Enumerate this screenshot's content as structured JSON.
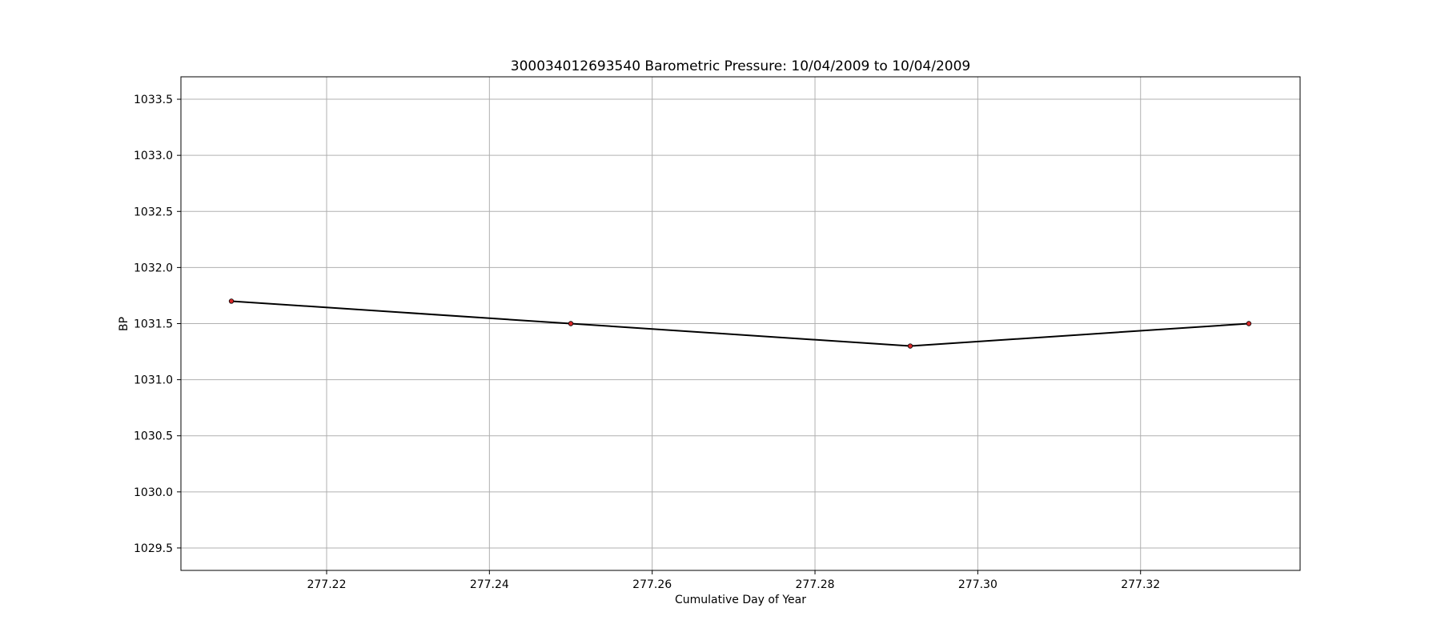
{
  "chart_data": {
    "type": "line",
    "title": "300034012693540 Barometric Pressure: 10/04/2009 to 10/04/2009",
    "xlabel": "Cumulative Day of Year",
    "ylabel": "BP",
    "xlim": [
      277.2021,
      277.3396
    ],
    "ylim": [
      1029.3,
      1033.7
    ],
    "xticks": [
      277.22,
      277.24,
      277.26,
      277.28,
      277.3,
      277.32
    ],
    "xtick_labels": [
      "277.22",
      "277.24",
      "277.26",
      "277.28",
      "277.30",
      "277.32"
    ],
    "yticks": [
      1029.5,
      1030.0,
      1030.5,
      1031.0,
      1031.5,
      1032.0,
      1032.5,
      1033.0,
      1033.5
    ],
    "ytick_labels": [
      "1029.5",
      "1030.0",
      "1030.5",
      "1031.0",
      "1031.5",
      "1032.0",
      "1032.5",
      "1033.0",
      "1033.5"
    ],
    "grid": true,
    "series": [
      {
        "x": [
          277.2083,
          277.25,
          277.2917,
          277.3333
        ],
        "y": [
          1031.7,
          1031.5,
          1031.3,
          1031.5
        ],
        "line_color": "#000000",
        "marker_color": "#d62728"
      }
    ]
  }
}
